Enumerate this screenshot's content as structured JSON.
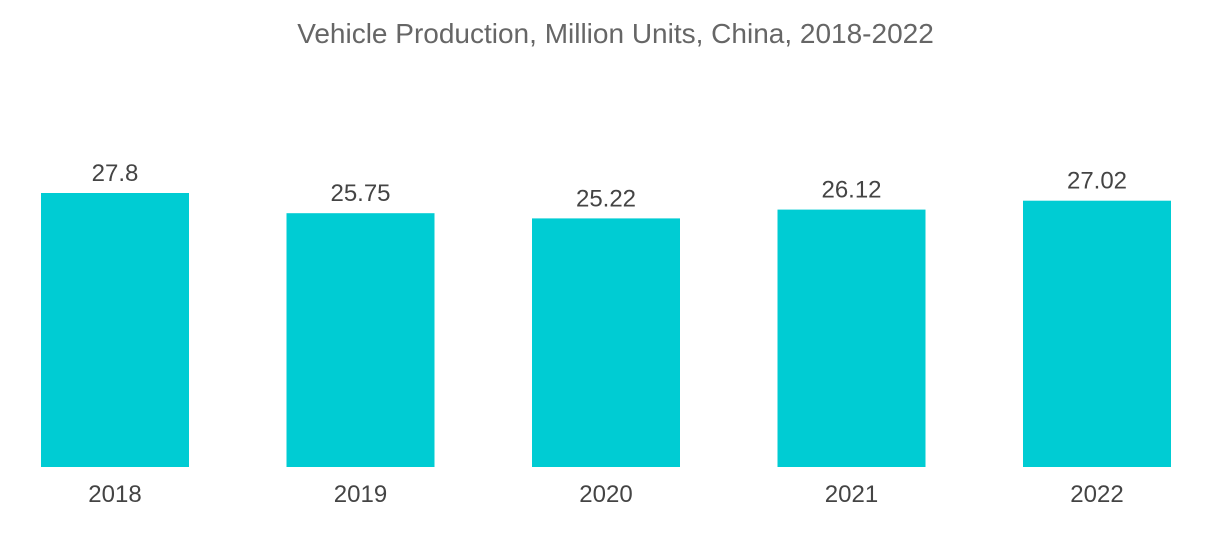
{
  "chart_data": {
    "type": "bar",
    "title": "Vehicle Production, Million Units, China, 2018-2022",
    "categories": [
      "2018",
      "2019",
      "2020",
      "2021",
      "2022"
    ],
    "values": [
      27.8,
      25.75,
      25.22,
      26.12,
      27.02
    ],
    "value_labels": [
      "27.8",
      "25.75",
      "25.22",
      "26.12",
      "27.02"
    ],
    "xlabel": "",
    "ylabel": "",
    "ylim": [
      0,
      27.8
    ],
    "grid": false,
    "legend": "none",
    "bar_color": "#00CCD3"
  }
}
